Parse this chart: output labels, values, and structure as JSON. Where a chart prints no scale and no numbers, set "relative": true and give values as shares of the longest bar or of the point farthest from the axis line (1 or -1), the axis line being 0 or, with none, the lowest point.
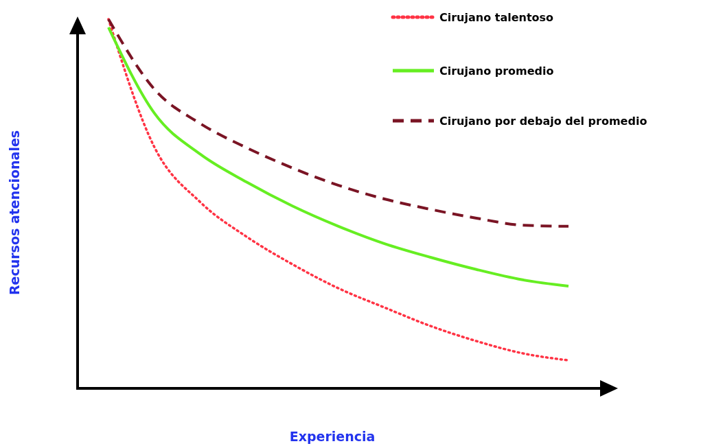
{
  "chart_data": {
    "type": "line",
    "relative": true,
    "xlabel": "Experiencia",
    "ylabel": "Recursos atencionales",
    "categories": [
      null,
      null,
      null,
      null,
      null,
      null,
      null,
      null,
      null,
      null,
      null
    ],
    "legend": "top right",
    "grid": false,
    "marker": "none",
    "series": [
      {
        "name": "Cirujano talentoso",
        "color": "#ff3344",
        "line_style": "dotted",
        "values": [
          1.0,
          0.653,
          0.504,
          0.411,
          0.336,
          0.271,
          0.219,
          0.169,
          0.128,
          0.095,
          0.076
        ]
      },
      {
        "name": "Cirujano promedio",
        "color": "#66ee22",
        "line_style": "solid",
        "values": [
          0.978,
          0.745,
          0.634,
          0.559,
          0.494,
          0.439,
          0.392,
          0.355,
          0.322,
          0.294,
          0.277
        ]
      },
      {
        "name": "Cirujano por debajo del promedio",
        "color": "#7a1424",
        "line_style": "dashed",
        "values": [
          1.0,
          0.81,
          0.717,
          0.652,
          0.597,
          0.55,
          0.513,
          0.485,
          0.461,
          0.442,
          0.439
        ]
      }
    ]
  }
}
